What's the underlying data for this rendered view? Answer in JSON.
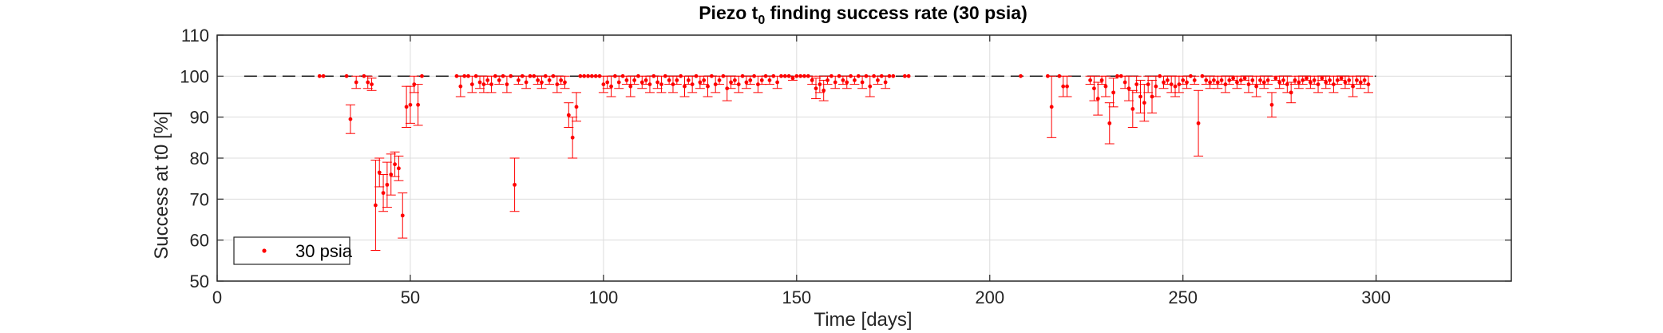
{
  "chart_data": {
    "type": "scatter",
    "title_main": "Piezo t",
    "title_sub": "0",
    "title_rest": " finding success rate (30 psia)",
    "xlabel": "Time [days]",
    "ylabel": "Success at t0 [%]",
    "xlim": [
      0,
      335
    ],
    "ylim": [
      50,
      110
    ],
    "xticks": [
      0,
      50,
      100,
      150,
      200,
      250,
      300
    ],
    "yticks": [
      50,
      60,
      70,
      80,
      90,
      100,
      110
    ],
    "grid": true,
    "legend_position": "bottom-left",
    "reference_line": {
      "y": 100,
      "x_range": [
        7,
        300
      ],
      "style": "dashed"
    },
    "series": [
      {
        "name": "30 psia",
        "color": "#ff0000",
        "points": [
          [
            26.5,
            100,
            0
          ],
          [
            27.5,
            100,
            0
          ],
          [
            33.5,
            100,
            0
          ],
          [
            34.5,
            89.5,
            3.5
          ],
          [
            36,
            98.5,
            1.5
          ],
          [
            38,
            100,
            0
          ],
          [
            39,
            98.5,
            1.5
          ],
          [
            40,
            98,
            1.5
          ],
          [
            41,
            68.5,
            11
          ],
          [
            42,
            76.5,
            3.5
          ],
          [
            43,
            71.5,
            4.5
          ],
          [
            44,
            73.5,
            5.5
          ],
          [
            45,
            76,
            5
          ],
          [
            46,
            78.5,
            3
          ],
          [
            47,
            77.5,
            3
          ],
          [
            48,
            66,
            5.5
          ],
          [
            49,
            92.5,
            5
          ],
          [
            50,
            93,
            4.5
          ],
          [
            51,
            98,
            2
          ],
          [
            52,
            93,
            5
          ],
          [
            53,
            100,
            0
          ],
          [
            62,
            100,
            0
          ],
          [
            63,
            97.5,
            2.5
          ],
          [
            64,
            100,
            0
          ],
          [
            65,
            100,
            0
          ],
          [
            66,
            98,
            2
          ],
          [
            67,
            100,
            0
          ],
          [
            68,
            98.5,
            1.5
          ],
          [
            69,
            98,
            2
          ],
          [
            70,
            99,
            1
          ],
          [
            71,
            98,
            2
          ],
          [
            72,
            100,
            0
          ],
          [
            73,
            99,
            1
          ],
          [
            74,
            100,
            0
          ],
          [
            75,
            98,
            2
          ],
          [
            76,
            100,
            0
          ],
          [
            77,
            73.5,
            6.5
          ],
          [
            78,
            99,
            1
          ],
          [
            79,
            100,
            0
          ],
          [
            80,
            98.5,
            1.5
          ],
          [
            81,
            100,
            0
          ],
          [
            82,
            100,
            0
          ],
          [
            83,
            99,
            1
          ],
          [
            84,
            98.5,
            1.5
          ],
          [
            85,
            100,
            0
          ],
          [
            86,
            99,
            1
          ],
          [
            87,
            100,
            0
          ],
          [
            88,
            98,
            2
          ],
          [
            89,
            99,
            1
          ],
          [
            90,
            98.5,
            1.5
          ],
          [
            91,
            90.5,
            3
          ],
          [
            92,
            85,
            5
          ],
          [
            93,
            92.5,
            3.5
          ],
          [
            94,
            100,
            0
          ],
          [
            95,
            100,
            0
          ],
          [
            96,
            100,
            0
          ],
          [
            97,
            100,
            0
          ],
          [
            98,
            100,
            0
          ],
          [
            99,
            100,
            0
          ],
          [
            100,
            98,
            2
          ],
          [
            101,
            98.5,
            1.5
          ],
          [
            102,
            97.5,
            2.5
          ],
          [
            103,
            100,
            0
          ],
          [
            104,
            98.5,
            1.5
          ],
          [
            105,
            100,
            0
          ],
          [
            106,
            99,
            1
          ],
          [
            107,
            97.5,
            2.5
          ],
          [
            108,
            99,
            1
          ],
          [
            109,
            100,
            0
          ],
          [
            110,
            98.5,
            1.5
          ],
          [
            111,
            99,
            1
          ],
          [
            112,
            98,
            2
          ],
          [
            113,
            100,
            0
          ],
          [
            114,
            98.5,
            1.5
          ],
          [
            115,
            98,
            2
          ],
          [
            116,
            100,
            0
          ],
          [
            117,
            99,
            1
          ],
          [
            118,
            98,
            2
          ],
          [
            119,
            99,
            1
          ],
          [
            120,
            100,
            0
          ],
          [
            121,
            97.5,
            2.5
          ],
          [
            122,
            99,
            1
          ],
          [
            123,
            98,
            2
          ],
          [
            124,
            100,
            0
          ],
          [
            125,
            98.5,
            1.5
          ],
          [
            126,
            99,
            1
          ],
          [
            127,
            97.5,
            2.5
          ],
          [
            128,
            100,
            0
          ],
          [
            129,
            98,
            2
          ],
          [
            130,
            99,
            1
          ],
          [
            131,
            100,
            0
          ],
          [
            132,
            97,
            3
          ],
          [
            133,
            98.5,
            1.5
          ],
          [
            134,
            99,
            1
          ],
          [
            135,
            98,
            2
          ],
          [
            136,
            100,
            0
          ],
          [
            137,
            98.5,
            1.5
          ],
          [
            138,
            99,
            1
          ],
          [
            139,
            100,
            0
          ],
          [
            140,
            98,
            2
          ],
          [
            141,
            99,
            1
          ],
          [
            142,
            100,
            0
          ],
          [
            143,
            99,
            1
          ],
          [
            144,
            100,
            0
          ],
          [
            145,
            98.5,
            1.5
          ],
          [
            146,
            100,
            0
          ],
          [
            147,
            100,
            0
          ],
          [
            148,
            100,
            0
          ],
          [
            149,
            99.5,
            0.5
          ],
          [
            150,
            100,
            0
          ],
          [
            151,
            100,
            0
          ],
          [
            152,
            100,
            0
          ],
          [
            153,
            100,
            0
          ],
          [
            154,
            99,
            1
          ],
          [
            155,
            97,
            2.5
          ],
          [
            156,
            98,
            2
          ],
          [
            157,
            96.5,
            2.5
          ],
          [
            158,
            99,
            1
          ],
          [
            159,
            100,
            0
          ],
          [
            160,
            98.5,
            1.5
          ],
          [
            161,
            100,
            0
          ],
          [
            162,
            99,
            1
          ],
          [
            163,
            98.5,
            1.5
          ],
          [
            164,
            100,
            0
          ],
          [
            165,
            99,
            1
          ],
          [
            166,
            100,
            0
          ],
          [
            167,
            98.5,
            1.5
          ],
          [
            168,
            100,
            0
          ],
          [
            169,
            97.5,
            2.5
          ],
          [
            170,
            100,
            0
          ],
          [
            171,
            99,
            1
          ],
          [
            172,
            100,
            0
          ],
          [
            173,
            98.5,
            1.5
          ],
          [
            174,
            100,
            0
          ],
          [
            175,
            100,
            0
          ],
          [
            178,
            100,
            0
          ],
          [
            179,
            100,
            0
          ],
          [
            208,
            100,
            0
          ],
          [
            215,
            100,
            0
          ],
          [
            216,
            92.5,
            7.5
          ],
          [
            218,
            100,
            0
          ],
          [
            219,
            97.5,
            2.5
          ],
          [
            220,
            97.5,
            2.5
          ],
          [
            226,
            99,
            1
          ],
          [
            227,
            97,
            3
          ],
          [
            228,
            94.5,
            4
          ],
          [
            229,
            99,
            1
          ],
          [
            230,
            97.5,
            2.5
          ],
          [
            231,
            88.5,
            5
          ],
          [
            232,
            96,
            3.5
          ],
          [
            233,
            100,
            0
          ],
          [
            234,
            100,
            0
          ],
          [
            235,
            98.5,
            1.5
          ],
          [
            236,
            97,
            3
          ],
          [
            237,
            92,
            4.5
          ],
          [
            238,
            98,
            2
          ],
          [
            239,
            95,
            4
          ],
          [
            240,
            93.5,
            4.5
          ],
          [
            241,
            98,
            2
          ],
          [
            242,
            95,
            4
          ],
          [
            243,
            97.5,
            2.5
          ],
          [
            244,
            100,
            0
          ],
          [
            245,
            98.5,
            1.5
          ],
          [
            246,
            99,
            1
          ],
          [
            247,
            98,
            2
          ],
          [
            248,
            97.5,
            2.5
          ],
          [
            249,
            98,
            2
          ],
          [
            250,
            99,
            1
          ],
          [
            251,
            98.5,
            1.5
          ],
          [
            252,
            100,
            0
          ],
          [
            253,
            99,
            1
          ],
          [
            254,
            88.5,
            8
          ],
          [
            255,
            100,
            0
          ],
          [
            256,
            99,
            1
          ],
          [
            257,
            98.5,
            1.5
          ],
          [
            258,
            99,
            1
          ],
          [
            259,
            98.5,
            1.5
          ],
          [
            260,
            99,
            1
          ],
          [
            261,
            98,
            2
          ],
          [
            262,
            99,
            1
          ],
          [
            263,
            99.5,
            0.5
          ],
          [
            264,
            98.5,
            1.5
          ],
          [
            265,
            99,
            1
          ],
          [
            266,
            99.5,
            0.5
          ],
          [
            267,
            98,
            2
          ],
          [
            268,
            99,
            1
          ],
          [
            269,
            97.5,
            2.5
          ],
          [
            270,
            99,
            1
          ],
          [
            271,
            98.5,
            1.5
          ],
          [
            272,
            99,
            1
          ],
          [
            273,
            93,
            3
          ],
          [
            274,
            99.5,
            0.5
          ],
          [
            275,
            98.5,
            1.5
          ],
          [
            276,
            99,
            1
          ],
          [
            277,
            98,
            2
          ],
          [
            278,
            96,
            2.5
          ],
          [
            279,
            99,
            1
          ],
          [
            280,
            98.5,
            1.5
          ],
          [
            281,
            99,
            1
          ],
          [
            282,
            99.5,
            0.5
          ],
          [
            283,
            98.5,
            1.5
          ],
          [
            284,
            99,
            1
          ],
          [
            285,
            98,
            2
          ],
          [
            286,
            99.5,
            0.5
          ],
          [
            287,
            98.5,
            1.5
          ],
          [
            288,
            99,
            1
          ],
          [
            289,
            98,
            2
          ],
          [
            290,
            99,
            1
          ],
          [
            291,
            99.5,
            0.5
          ],
          [
            292,
            98.5,
            1.5
          ],
          [
            293,
            99,
            1
          ],
          [
            294,
            97.5,
            2.5
          ],
          [
            295,
            99,
            1
          ],
          [
            296,
            98.5,
            1.5
          ],
          [
            297,
            99,
            1
          ],
          [
            298,
            98,
            2
          ]
        ]
      }
    ]
  }
}
